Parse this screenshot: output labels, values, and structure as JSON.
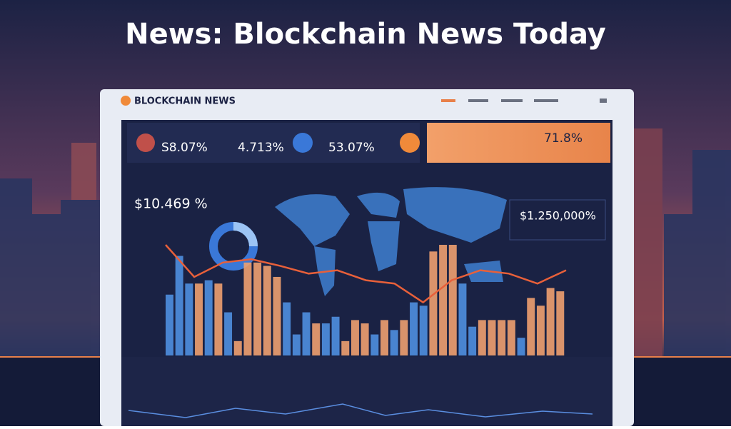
{
  "title": "News: Blockchain News Today",
  "panel": {
    "brand": "BLOCKCHAIN NEWS",
    "stats": [
      "S8.07%",
      "4.713%",
      "53.07%"
    ],
    "highlight": "71.8%",
    "left_figure": "$10.469 %",
    "right_figure": "$1.250,000%"
  },
  "chart_data": {
    "type": "bar",
    "values": [
      55,
      90,
      65,
      65,
      68,
      65,
      39,
      13,
      84,
      84,
      81,
      71,
      48,
      19,
      39,
      29,
      29,
      35,
      13,
      32,
      29,
      19,
      32,
      23,
      32,
      48,
      45,
      94,
      100,
      100,
      65,
      26,
      32,
      32,
      32,
      32,
      16,
      52,
      45,
      61,
      58
    ],
    "colors": [
      "#4f8fe0",
      "#4f8fe0",
      "#4f8fe0",
      "#f0a070",
      "#4f8fe0",
      "#f0a070",
      "#4f8fe0",
      "#f0a070",
      "#f0a070",
      "#f0a070",
      "#f0a070",
      "#f0a070",
      "#4f8fe0",
      "#4f8fe0",
      "#4f8fe0",
      "#f0a070",
      "#4f8fe0",
      "#4f8fe0",
      "#f0a070",
      "#f0a070",
      "#f0a070",
      "#4f8fe0",
      "#f0a070",
      "#4f8fe0",
      "#f0a070",
      "#4f8fe0",
      "#4f8fe0",
      "#f0a070",
      "#f0a070",
      "#f0a070",
      "#4f8fe0",
      "#4f8fe0",
      "#f0a070",
      "#f0a070",
      "#f0a070",
      "#f0a070",
      "#4f8fe0",
      "#f0a070",
      "#f0a070",
      "#f0a070",
      "#f0a070"
    ],
    "line": {
      "color": "#e8603a",
      "values": [
        100,
        71,
        84,
        87,
        81,
        74,
        77,
        68,
        65,
        48,
        68,
        77,
        74,
        65,
        77
      ]
    }
  }
}
